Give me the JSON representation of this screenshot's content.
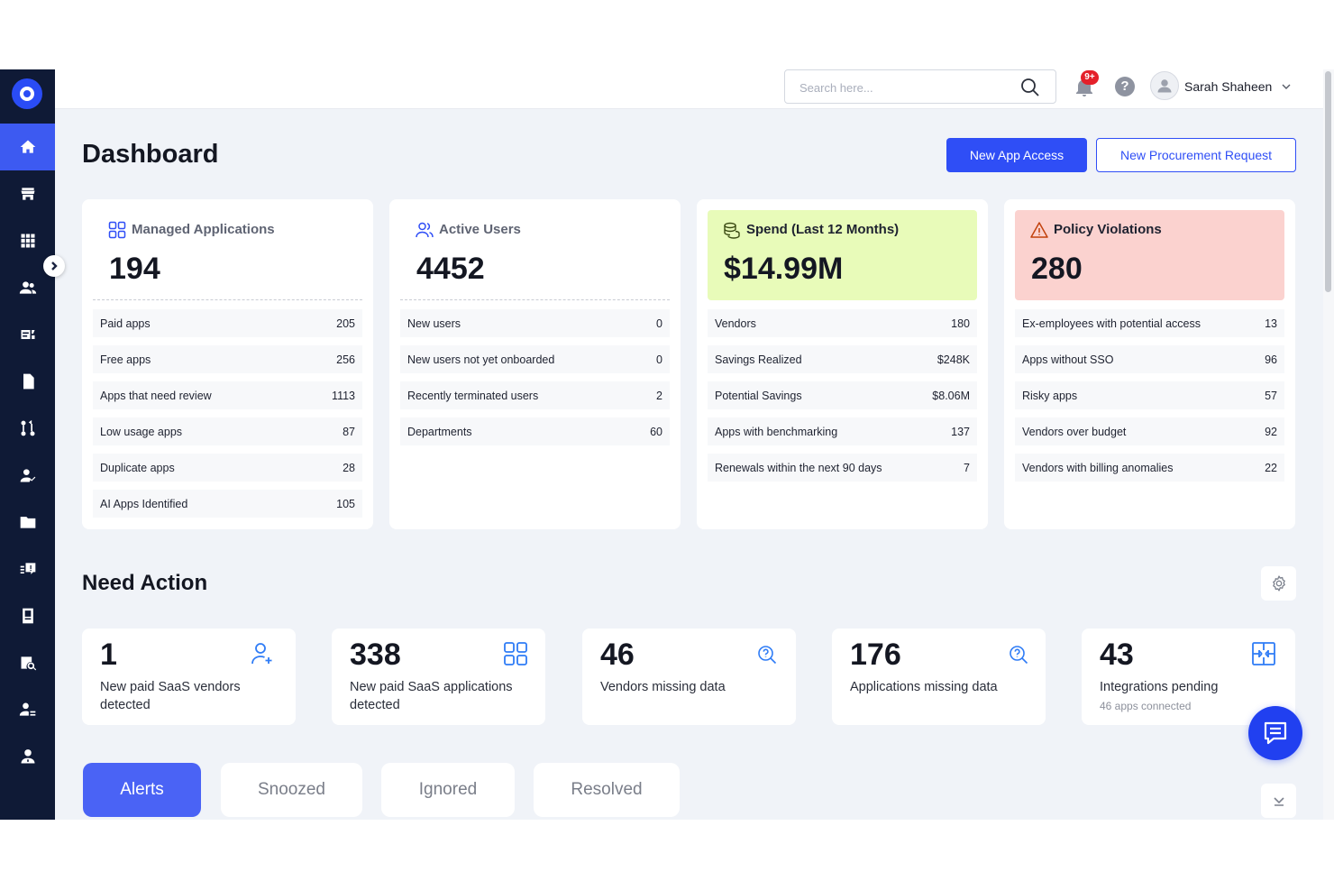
{
  "header": {
    "search_placeholder": "Search here...",
    "notification_badge": "9+",
    "help_glyph": "?",
    "user_name": "Sarah Shaheen"
  },
  "page": {
    "title": "Dashboard",
    "new_app_access": "New App Access",
    "new_procurement": "New Procurement Request"
  },
  "sidebar": {
    "items": [
      {
        "icon": "home-icon",
        "active": true
      },
      {
        "icon": "store-icon"
      },
      {
        "icon": "apps-grid-icon"
      },
      {
        "icon": "users-icon"
      },
      {
        "icon": "vendors-icon"
      },
      {
        "icon": "document-icon"
      },
      {
        "icon": "workflow-icon"
      },
      {
        "icon": "user-check-icon"
      },
      {
        "icon": "folder-icon"
      },
      {
        "icon": "feedback-icon"
      },
      {
        "icon": "book-icon"
      },
      {
        "icon": "search-folder-icon"
      },
      {
        "icon": "user-settings-icon"
      },
      {
        "icon": "admin-icon"
      }
    ]
  },
  "cards": [
    {
      "label": "Managed Applications",
      "value": "194",
      "rows": [
        {
          "label": "Paid apps",
          "value": "205"
        },
        {
          "label": "Free apps",
          "value": "256"
        },
        {
          "label": "Apps that need review",
          "value": "1113"
        },
        {
          "label": "Low usage apps",
          "value": "87"
        },
        {
          "label": "Duplicate apps",
          "value": "28"
        },
        {
          "label": "AI Apps Identified",
          "value": "105"
        }
      ]
    },
    {
      "label": "Active Users",
      "value": "4452",
      "rows": [
        {
          "label": "New users",
          "value": "0"
        },
        {
          "label": "New users not yet onboarded",
          "value": "0"
        },
        {
          "label": "Recently terminated users",
          "value": "2"
        },
        {
          "label": "Departments",
          "value": "60"
        }
      ]
    },
    {
      "label": "Spend (Last 12 Months)",
      "value": "$14.99M",
      "color": "#e8fbb9",
      "rows": [
        {
          "label": "Vendors",
          "value": "180"
        },
        {
          "label": "Savings Realized",
          "value": "$248K"
        },
        {
          "label": "Potential Savings",
          "value": "$8.06M"
        },
        {
          "label": "Apps with benchmarking",
          "value": "137"
        },
        {
          "label": "Renewals within the next 90 days",
          "value": "7"
        }
      ]
    },
    {
      "label": "Policy Violations",
      "value": "280",
      "color": "#fbd2cf",
      "rows": [
        {
          "label": "Ex-employees with potential access",
          "value": "13"
        },
        {
          "label": "Apps without SSO",
          "value": "96"
        },
        {
          "label": "Risky apps",
          "value": "57"
        },
        {
          "label": "Vendors over budget",
          "value": "92"
        },
        {
          "label": "Vendors with billing anomalies",
          "value": "22"
        }
      ]
    }
  ],
  "need_action": {
    "title": "Need Action",
    "items": [
      {
        "value": "1",
        "label": "New paid SaaS vendors detected",
        "icon": "add-user-icon"
      },
      {
        "value": "338",
        "label": "New paid SaaS applications detected",
        "icon": "apps-grid-icon"
      },
      {
        "value": "46",
        "label": "Vendors missing data",
        "icon": "search-help-icon"
      },
      {
        "value": "176",
        "label": "Applications missing data",
        "icon": "search-help-icon"
      },
      {
        "value": "43",
        "label": "Integrations pending",
        "sub": "46 apps connected",
        "icon": "integration-icon"
      }
    ]
  },
  "tabs": [
    {
      "label": "Alerts",
      "active": true
    },
    {
      "label": "Snoozed"
    },
    {
      "label": "Ignored"
    },
    {
      "label": "Resolved"
    }
  ],
  "colors": {
    "accent": "#2f4ef6",
    "sidebar_bg": "#0f1a36",
    "sidebar_active": "#3d5af1",
    "spend_bg": "#e8fbb9",
    "violations_bg": "#fbd2cf"
  }
}
